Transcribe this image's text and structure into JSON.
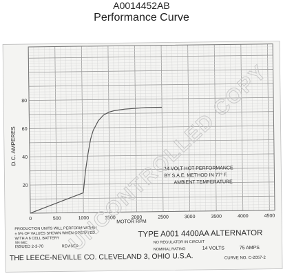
{
  "header": {
    "title": "A0014452AB",
    "subtitle": "Performance Curve"
  },
  "chart_data": {
    "type": "line",
    "ylabel": "D.C. AMPERES",
    "xlabel": "MOTOR RPM",
    "x_ticks": [
      0,
      500,
      1000,
      1500,
      2000,
      2500,
      3000,
      3500,
      4000,
      4500
    ],
    "y_ticks": [
      20,
      40,
      60,
      80
    ],
    "xlim": [
      0,
      4600
    ],
    "ylim": [
      0,
      118
    ],
    "grid": true,
    "series": [
      {
        "x": [
          0,
          1000,
          1050,
          1100,
          1150,
          1200,
          1300,
          1400,
          1500,
          1600,
          1700,
          1800,
          2000,
          2200,
          2500
        ],
        "y": [
          0,
          14,
          30,
          42,
          52,
          58,
          65,
          69,
          71,
          72,
          72.5,
          73,
          73.5,
          74,
          74
        ]
      }
    ],
    "annotation": [
      "14 VOLT HOT PERFORMANCE",
      "BY S.A.E. METHOD IN 77° F.",
      "AMBIENT TEMPERATURE"
    ]
  },
  "footer": {
    "production_note": [
      "PRODUCTION UNITS WILL PERFORM WITHIN",
      "± 5% OF VALUES SHOWN WHEN OPERATED",
      "WITH A 6 CELL BATTERY"
    ],
    "sn": "SN 6BC",
    "issued": "ISSUED 2-3-70",
    "revised": "REVISED",
    "type_line": "TYPE A001 4400AA ALTERNATOR",
    "regulator": "NO REGULATOR IN CIRCUIT",
    "nominal_label": "NOMINAL RATING",
    "volts": "14 VOLTS",
    "amps": "75 AMPS",
    "company": "THE LEECE-NEVILLE CO. CLEVELAND 3, OHIO U.S.A.",
    "curve_no": "CURVE NO. C-2057-2"
  },
  "watermark": "UNCONTROLLED COPY"
}
